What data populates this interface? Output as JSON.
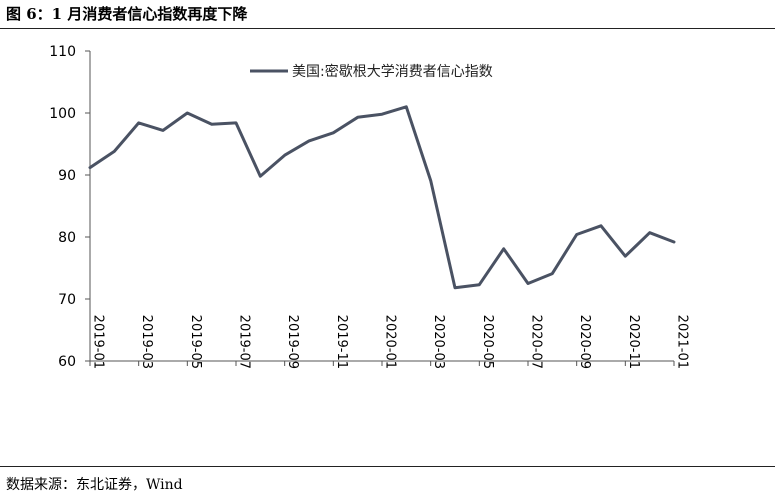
{
  "header": {
    "title": "图 6：1 月消费者信心指数再度下降"
  },
  "footer": {
    "source": "数据来源：东北证券，Wind"
  },
  "colors": {
    "line": "#4a5263",
    "axis": "#555555",
    "text": "#000000"
  },
  "chart_data": {
    "type": "line",
    "title": "",
    "xlabel": "",
    "ylabel": "",
    "ylim": [
      60,
      110
    ],
    "yticks": [
      60,
      70,
      80,
      90,
      100,
      110
    ],
    "grid": false,
    "legend_position": "top-center",
    "x": [
      "2019-01",
      "2019-02",
      "2019-03",
      "2019-04",
      "2019-05",
      "2019-06",
      "2019-07",
      "2019-08",
      "2019-09",
      "2019-10",
      "2019-11",
      "2019-12",
      "2020-01",
      "2020-02",
      "2020-03",
      "2020-04",
      "2020-05",
      "2020-06",
      "2020-07",
      "2020-08",
      "2020-09",
      "2020-10",
      "2020-11",
      "2020-12",
      "2021-01"
    ],
    "xtick_labels": [
      "2019-01",
      "2019-03",
      "2019-05",
      "2019-07",
      "2019-09",
      "2019-11",
      "2020-01",
      "2020-03",
      "2020-05",
      "2020-07",
      "2020-09",
      "2020-11",
      "2021-01"
    ],
    "series": [
      {
        "name": "美国:密歇根大学消费者信心指数",
        "values": [
          91.2,
          93.8,
          98.4,
          97.2,
          100.0,
          98.2,
          98.4,
          89.8,
          93.2,
          95.5,
          96.8,
          99.3,
          99.8,
          101.0,
          89.1,
          71.8,
          72.3,
          78.1,
          72.5,
          74.1,
          80.4,
          81.8,
          76.9,
          80.7,
          79.2
        ]
      }
    ]
  }
}
